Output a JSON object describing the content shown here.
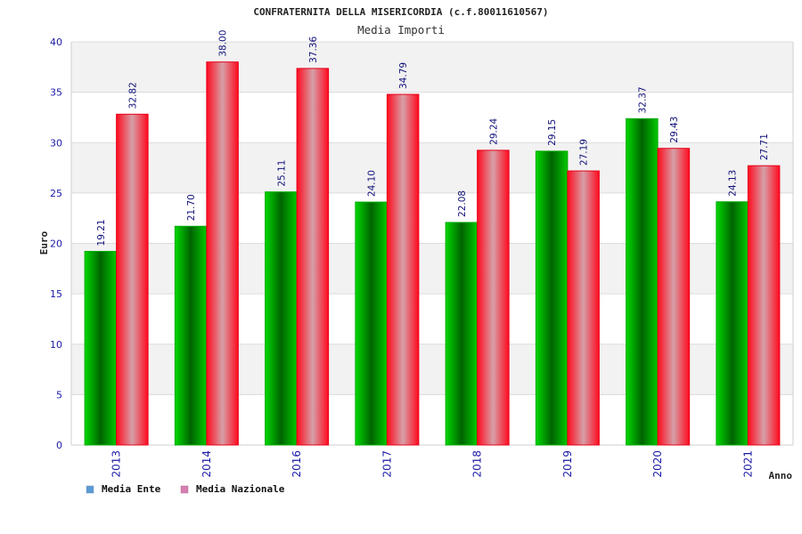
{
  "chart_data": {
    "type": "bar",
    "title": "CONFRATERNITA DELLA MISERICORDIA (c.f.80011610567)",
    "subtitle": "Media Importi",
    "xlabel": "Anno",
    "ylabel": "Euro",
    "ylim": [
      0,
      40
    ],
    "yticks": [
      0,
      5,
      10,
      15,
      20,
      25,
      30,
      35,
      40
    ],
    "categories": [
      "2013",
      "2014",
      "2016",
      "2017",
      "2018",
      "2019",
      "2020",
      "2021"
    ],
    "series": [
      {
        "name": "Media Ente",
        "values": [
          19.21,
          21.7,
          25.11,
          24.1,
          22.08,
          29.15,
          32.37,
          24.13
        ],
        "labels": [
          "19.21",
          "21.70",
          "25.11",
          "24.10",
          "22.08",
          "29.15",
          "32.37",
          "24.13"
        ],
        "color": "#00b400",
        "legend_color": "#5b9bd5"
      },
      {
        "name": "Media Nazionale",
        "values": [
          32.82,
          38.0,
          37.36,
          34.79,
          29.24,
          27.19,
          29.43,
          27.71
        ],
        "labels": [
          "32.82",
          "38.00",
          "37.36",
          "34.79",
          "29.24",
          "27.19",
          "29.43",
          "27.71"
        ],
        "color": "#ee1122",
        "legend_color": "#d67fb0"
      }
    ],
    "grid": true,
    "legend": "bottom-left"
  }
}
